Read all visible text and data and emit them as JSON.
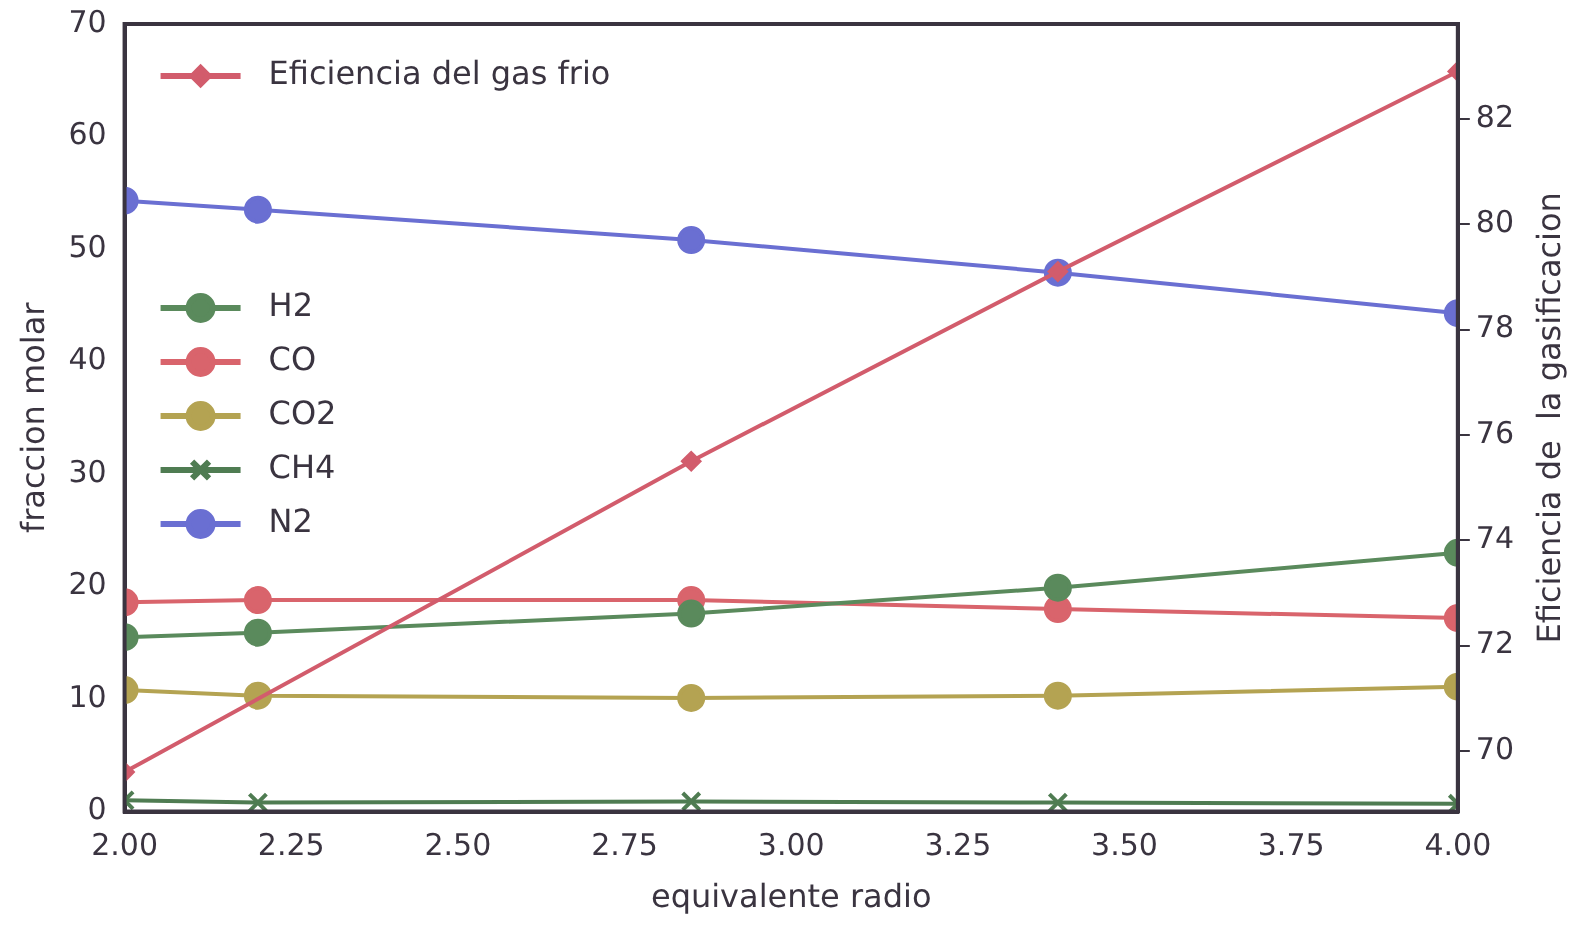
{
  "chart_data": {
    "type": "line",
    "xlabel": "equivalente radio",
    "ylabel": "fraccion molar",
    "y2label": "Eficiencia de  la gasificacion",
    "x": [
      2.0,
      2.2,
      2.85,
      3.4,
      4.0
    ],
    "xlim": [
      2.0,
      4.0
    ],
    "xticks": [
      {
        "value": 2,
        "label": "2.00"
      },
      {
        "value": 2.25,
        "label": "2.25"
      },
      {
        "value": 2.5,
        "label": "2.50"
      },
      {
        "value": 2.75,
        "label": "2.75"
      },
      {
        "value": 3,
        "label": "3.00"
      },
      {
        "value": 3.25,
        "label": "3.25"
      },
      {
        "value": 3.5,
        "label": "3.50"
      },
      {
        "value": 3.75,
        "label": "3.75"
      },
      {
        "value": 4,
        "label": "4.00"
      }
    ],
    "ylim": [
      0,
      70
    ],
    "yticks": [
      0,
      10,
      20,
      30,
      40,
      50,
      60,
      70
    ],
    "y2lim": [
      68.85,
      83.8
    ],
    "y2ticks": [
      70,
      72,
      74,
      76,
      78,
      80,
      82
    ],
    "grid": false,
    "legend": "left",
    "marker": "circle",
    "line_style": "solid",
    "series": [
      {
        "name": "Eficiencia del gas frio",
        "color": "#d25c6c",
        "axis": "y2",
        "marker": "diamond",
        "x": [
          2.0,
          2.85,
          3.4,
          4.0
        ],
        "values": [
          69.6,
          75.5,
          79.1,
          82.9
        ]
      },
      {
        "name": "H2",
        "color": "#5a8a5c",
        "values": [
          15.5,
          15.9,
          17.6,
          19.9,
          23.0
        ]
      },
      {
        "name": "CO",
        "color": "#d9646c",
        "values": [
          18.6,
          18.8,
          18.8,
          18.0,
          17.2
        ]
      },
      {
        "name": "CO2",
        "color": "#b4a352",
        "values": [
          10.8,
          10.3,
          10.1,
          10.3,
          11.1
        ]
      },
      {
        "name": "CH4",
        "color": "#4f7c52",
        "marker": "cross",
        "values": [
          1.0,
          0.8,
          0.9,
          0.8,
          0.7
        ]
      },
      {
        "name": "N2",
        "color": "#6a6fd2",
        "values": [
          54.3,
          53.5,
          50.8,
          47.9,
          44.3
        ]
      }
    ]
  }
}
